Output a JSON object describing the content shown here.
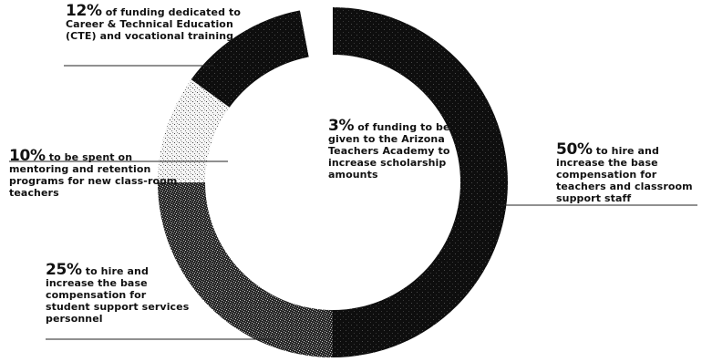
{
  "chart_data": {
    "type": "donut",
    "slices": [
      {
        "pct": 50,
        "pct_label": "50%",
        "text": "to hire and increase the base compensation for teachers and classroom support staff",
        "fill": "solid-dark"
      },
      {
        "pct": 25,
        "pct_label": "25%",
        "text": "to hire and increase the base compensation for student support services personnel",
        "fill": "dense-stipple"
      },
      {
        "pct": 10,
        "pct_label": "10%",
        "text": "to be spent on mentoring and retention programs for new class-room teachers",
        "fill": "light-stipple"
      },
      {
        "pct": 12,
        "pct_label": "12%",
        "text": "of funding dedicated to Career & Technical Education (CTE) and vocational training",
        "fill": "solid-dark"
      },
      {
        "pct": 3,
        "pct_label": "3%",
        "text": "of funding to be given to the Arizona Teachers Academy to increase scholarship amounts",
        "fill": "white"
      }
    ],
    "start_position": "top",
    "direction": "clockwise"
  },
  "colors": {
    "dark": "#0e0e0e",
    "dense": "#2a2a2a",
    "light": "#f2f2f2",
    "leader": "#222222",
    "background": "#ffffff"
  }
}
